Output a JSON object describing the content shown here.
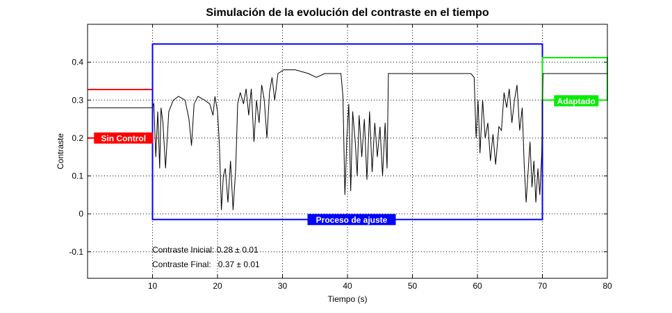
{
  "chart_data": {
    "type": "line",
    "title": "Simulación de la evolución del contraste en el tiempo",
    "xlabel": "Tiempo (s)",
    "ylabel": "Contraste",
    "xlim": [
      0,
      80
    ],
    "ylim": [
      -0.17,
      0.5
    ],
    "xticks": [
      10,
      20,
      30,
      40,
      50,
      60,
      70,
      80
    ],
    "yticks": [
      -0.1,
      0,
      0.1,
      0.2,
      0.3,
      0.4
    ],
    "xtick_labels": [
      "10",
      "20",
      "30",
      "40",
      "50",
      "60",
      "70",
      "80"
    ],
    "ytick_labels": [
      "-0.1",
      "0",
      "0.1",
      "0.2",
      "0.3",
      "0.4"
    ],
    "grid": true,
    "series": [
      {
        "color": "#000000",
        "points": [
          [
            0,
            0.28
          ],
          [
            2,
            0.28
          ],
          [
            4,
            0.28
          ],
          [
            6,
            0.28
          ],
          [
            8,
            0.28
          ],
          [
            9.9,
            0.28
          ],
          [
            10.2,
            0.29
          ],
          [
            10.5,
            0.15
          ],
          [
            10.8,
            0.27
          ],
          [
            11.1,
            0.12
          ],
          [
            11.3,
            0.28
          ],
          [
            11.6,
            0.24
          ],
          [
            12,
            0.12
          ],
          [
            12.5,
            0.27
          ],
          [
            13.2,
            0.3
          ],
          [
            14,
            0.31
          ],
          [
            15,
            0.3
          ],
          [
            15.6,
            0.25
          ],
          [
            16,
            0.18
          ],
          [
            16.4,
            0.29
          ],
          [
            17,
            0.31
          ],
          [
            18,
            0.3
          ],
          [
            18.8,
            0.29
          ],
          [
            19.3,
            0.26
          ],
          [
            19.6,
            0.31
          ],
          [
            20,
            0.27
          ],
          [
            20.3,
            0.18
          ],
          [
            20.6,
            0.01
          ],
          [
            20.9,
            0.1
          ],
          [
            21.2,
            0.12
          ],
          [
            21.6,
            0.03
          ],
          [
            22,
            0.14
          ],
          [
            22.4,
            0.01
          ],
          [
            22.8,
            0.12
          ],
          [
            23.1,
            0.29
          ],
          [
            23.5,
            0.32
          ],
          [
            24,
            0.29
          ],
          [
            24.4,
            0.33
          ],
          [
            24.8,
            0.26
          ],
          [
            25.2,
            0.33
          ],
          [
            25.6,
            0.19
          ],
          [
            26,
            0.3
          ],
          [
            26.4,
            0.24
          ],
          [
            26.8,
            0.34
          ],
          [
            27.2,
            0.3
          ],
          [
            27.6,
            0.2
          ],
          [
            28,
            0.32
          ],
          [
            28.4,
            0.36
          ],
          [
            28.8,
            0.3
          ],
          [
            29.3,
            0.37
          ],
          [
            30.2,
            0.38
          ],
          [
            32,
            0.38
          ],
          [
            34,
            0.37
          ],
          [
            35.2,
            0.36
          ],
          [
            36.5,
            0.37
          ],
          [
            38,
            0.37
          ],
          [
            39,
            0.37
          ],
          [
            39.3,
            0.31
          ],
          [
            39.6,
            0.05
          ],
          [
            39.9,
            0.2
          ],
          [
            40.2,
            0.29
          ],
          [
            40.5,
            0.06
          ],
          [
            40.8,
            0.27
          ],
          [
            41.2,
            0.19
          ],
          [
            41.5,
            0.1
          ],
          [
            41.8,
            0.26
          ],
          [
            42.2,
            0.15
          ],
          [
            42.6,
            0.25
          ],
          [
            43,
            0.09
          ],
          [
            43.4,
            0.27
          ],
          [
            43.8,
            0.11
          ],
          [
            44.2,
            0.24
          ],
          [
            44.6,
            0.15
          ],
          [
            45,
            0.23
          ],
          [
            45.4,
            0.1
          ],
          [
            45.8,
            0.24
          ],
          [
            46.1,
            0.12
          ],
          [
            46.3,
            0.37
          ],
          [
            47,
            0.37
          ],
          [
            49,
            0.37
          ],
          [
            51,
            0.37
          ],
          [
            53,
            0.37
          ],
          [
            55,
            0.37
          ],
          [
            57,
            0.37
          ],
          [
            59,
            0.37
          ],
          [
            59.5,
            0.36
          ],
          [
            59.8,
            0.2
          ],
          [
            60.1,
            0.3
          ],
          [
            60.4,
            0.16
          ],
          [
            60.8,
            0.3
          ],
          [
            61.2,
            0.2
          ],
          [
            61.6,
            0.24
          ],
          [
            62,
            0.14
          ],
          [
            62.4,
            0.21
          ],
          [
            62.8,
            0.13
          ],
          [
            63.3,
            0.23
          ],
          [
            63.7,
            0.22
          ],
          [
            64.1,
            0.32
          ],
          [
            64.5,
            0.28
          ],
          [
            64.9,
            0.33
          ],
          [
            65.3,
            0.24
          ],
          [
            65.7,
            0.3
          ],
          [
            66.1,
            0.34
          ],
          [
            66.5,
            0.22
          ],
          [
            66.9,
            0.28
          ],
          [
            67.2,
            0.13
          ],
          [
            67.5,
            0.03
          ],
          [
            67.8,
            0.11
          ],
          [
            68.1,
            0.19
          ],
          [
            68.4,
            0.07
          ],
          [
            68.7,
            0.14
          ],
          [
            69,
            0.03
          ],
          [
            69.3,
            0.12
          ],
          [
            69.6,
            0.05
          ],
          [
            69.9,
            0.16
          ],
          [
            70.1,
            0.37
          ],
          [
            72,
            0.37
          ],
          [
            74,
            0.37
          ],
          [
            76,
            0.37
          ],
          [
            78,
            0.37
          ],
          [
            80,
            0.37
          ]
        ]
      }
    ],
    "annotations": [
      {
        "text": "Sin Control",
        "color": "#ff0000",
        "xrange": [
          0,
          10
        ],
        "y": 0.328
      },
      {
        "text": "Proceso de ajuste",
        "color": "#0000ff",
        "xrange": [
          10,
          70
        ],
        "y": -0.015,
        "top": 0.448
      },
      {
        "text": "Adaptado",
        "color": "#00ee00",
        "xrange": [
          70,
          80
        ],
        "y": 0.3,
        "top": 0.412
      }
    ],
    "notes": [
      "Contraste Inicial: 0.28 ± 0.01",
      "Contraste Final:   0.37 ± 0.01"
    ]
  }
}
